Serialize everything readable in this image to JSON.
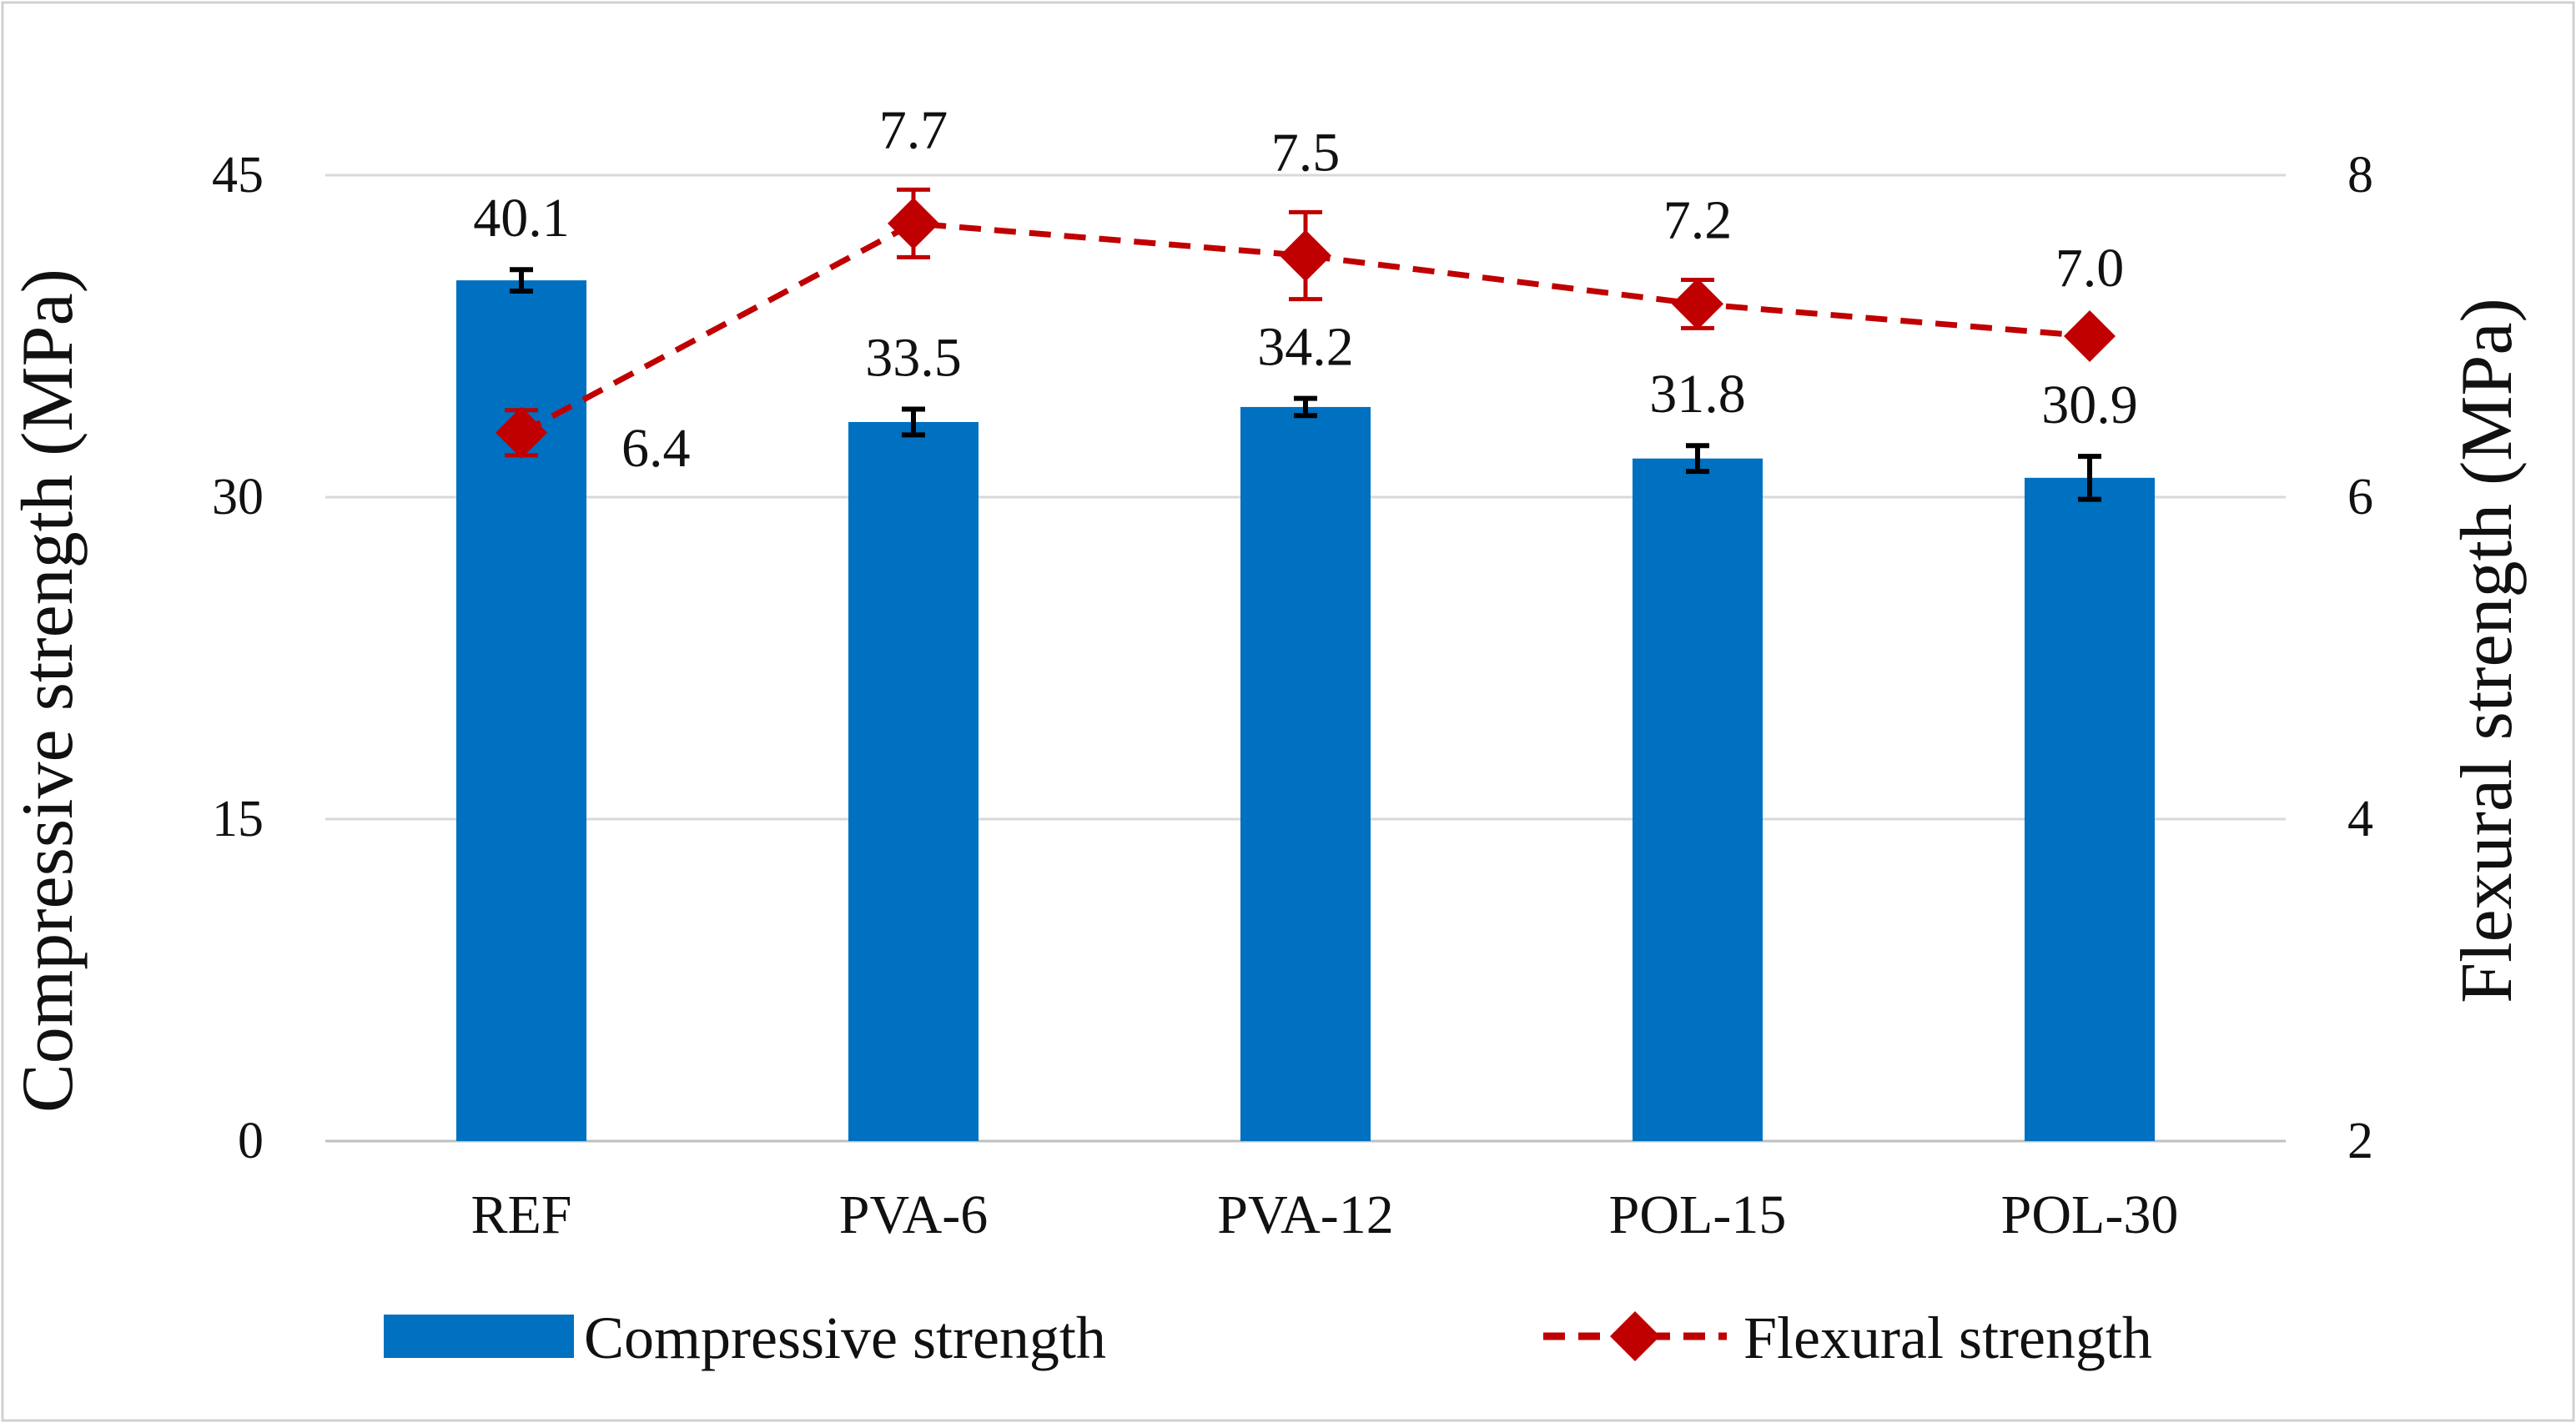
{
  "chart_data": {
    "type": "bar",
    "categories": [
      "REF",
      "PVA-6",
      "PVA-12",
      "POL-15",
      "POL-30"
    ],
    "series": [
      {
        "name": "Compressive strength",
        "kind": "bar",
        "axis": "left",
        "color": "#0070C0",
        "values": [
          40.1,
          33.5,
          34.2,
          31.8,
          30.9
        ],
        "labels": [
          "40.1",
          "33.5",
          "34.2",
          "31.8",
          "30.9"
        ],
        "errors": [
          0.5,
          0.6,
          0.4,
          0.6,
          1.0
        ]
      },
      {
        "name": "Flexural strength",
        "kind": "line",
        "axis": "right",
        "color": "#C00000",
        "marker": "diamond",
        "line_style": "dashed",
        "values": [
          6.4,
          7.7,
          7.5,
          7.2,
          7.0
        ],
        "labels": [
          "6.4",
          "7.7",
          "7.5",
          "7.2",
          "7.0"
        ],
        "errors": [
          0.14,
          0.21,
          0.27,
          0.15,
          0.0
        ]
      }
    ],
    "ylabel": "Compressive strength (MPa)",
    "ylabel_right": "Flexural strength (MPa)",
    "ylim": [
      0,
      45
    ],
    "yticks": [
      0,
      15,
      30,
      45
    ],
    "ylim_right": [
      2,
      8
    ],
    "yticks_right": [
      2,
      4,
      6,
      8
    ],
    "grid": true,
    "legend_position": "bottom"
  }
}
